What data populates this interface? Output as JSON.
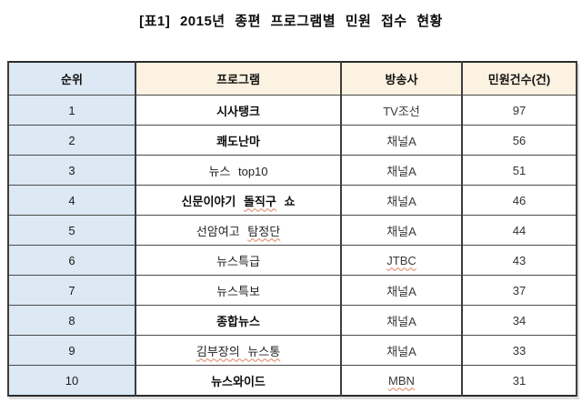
{
  "title": "[표1] 2015년 종편 프로그램별 민원 접수 현황",
  "table": {
    "headers": [
      "순위",
      "프로그램",
      "방송사",
      "민원건수(건)"
    ],
    "rows": [
      {
        "rank": "1",
        "program": "시사탱크",
        "program_bold": true,
        "broadcaster": "TV조선",
        "count": "97"
      },
      {
        "rank": "2",
        "program": "쾌도난마",
        "program_bold": true,
        "broadcaster": "채널A",
        "count": "56"
      },
      {
        "rank": "3",
        "program": "뉴스 top10",
        "program_bold": false,
        "broadcaster": "채널A",
        "count": "51"
      },
      {
        "rank": "4",
        "program": "신문이야기 돌직구 쇼",
        "program_bold": true,
        "broadcaster": "채널A",
        "count": "46",
        "program_squiggle": "돌직구"
      },
      {
        "rank": "5",
        "program": "선암여고 탐정단",
        "program_bold": false,
        "broadcaster": "채널A",
        "count": "44",
        "program_squiggle": "탐정단"
      },
      {
        "rank": "6",
        "program": "뉴스특급",
        "program_bold": false,
        "broadcaster": "JTBC",
        "count": "43",
        "broadcaster_squiggle": true
      },
      {
        "rank": "7",
        "program": "뉴스특보",
        "program_bold": false,
        "broadcaster": "채널A",
        "count": "37"
      },
      {
        "rank": "8",
        "program": "종합뉴스",
        "program_bold": true,
        "broadcaster": "채널A",
        "count": "34"
      },
      {
        "rank": "9",
        "program": "김부장의 뉴스통",
        "program_bold": false,
        "broadcaster": "채널A",
        "count": "33",
        "program_squiggle": "김부장의 뉴스통"
      },
      {
        "rank": "10",
        "program": "뉴스와이드",
        "program_bold": true,
        "broadcaster": "MBN",
        "count": "31",
        "broadcaster_squiggle": true
      }
    ]
  },
  "colors": {
    "rank_column_bg": "#dce8f3",
    "header_bg": "#fcf2e1",
    "grid_border": "#4a4a4a",
    "spellcheck_underline": "#e08060"
  }
}
